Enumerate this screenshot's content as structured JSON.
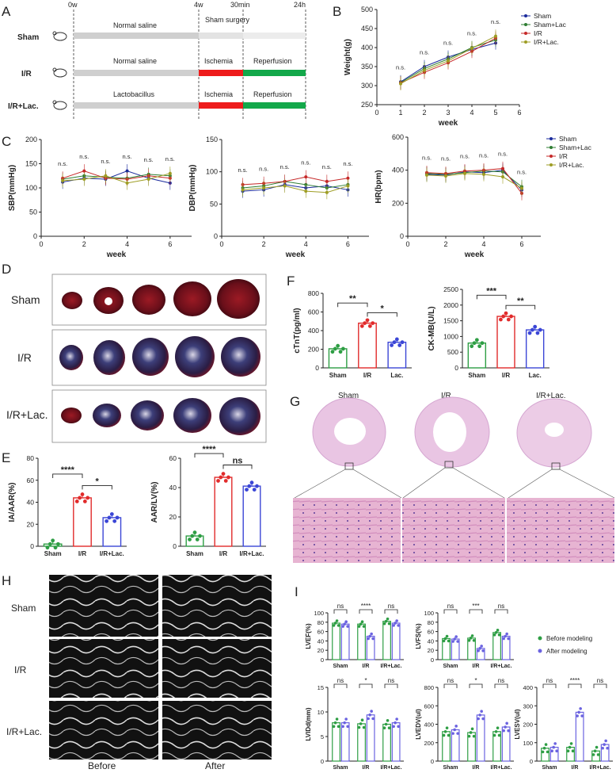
{
  "panels": {
    "A": "A",
    "B": "B",
    "C": "C",
    "D": "D",
    "E": "E",
    "F": "F",
    "G": "G",
    "H": "H",
    "I": "I"
  },
  "panel_a": {
    "time_marks": [
      "0w",
      "4w",
      "30min",
      "24h"
    ],
    "rows": [
      {
        "label": "Sham",
        "phase1": "Normal saline",
        "phase2": "Sham surgery",
        "phase3": ""
      },
      {
        "label": "I/R",
        "phase1": "Normal saline",
        "phase2": "Ischemia",
        "phase3": "Reperfusion"
      },
      {
        "label": "I/R+Lac.",
        "phase1": "Lactobacillus",
        "phase2": "Ischemia",
        "phase3": "Reperfusion"
      }
    ],
    "colors": {
      "gray": "#cfcfcf",
      "light": "#ececec",
      "red": "#ee1c1c",
      "green": "#13a84a"
    }
  },
  "series_colors": {
    "Sham": "#1a2a9c",
    "Sham+Lac": "#2e7d32",
    "I/R": "#c62828",
    "I/R+Lac.": "#9e9d24"
  },
  "chart_data": [
    {
      "id": "B",
      "type": "line",
      "xlabel": "week",
      "ylabel": "Weight(g)",
      "xlim": [
        0,
        6
      ],
      "ylim": [
        250,
        500
      ],
      "xticks": [
        0,
        1,
        2,
        3,
        4,
        5,
        6
      ],
      "yticks": [
        250,
        300,
        350,
        400,
        450,
        500
      ],
      "annotations": [
        "n.s.",
        "n.s.",
        "n.s.",
        "n.s.",
        "n.s."
      ],
      "x": [
        1,
        2,
        3,
        4,
        5
      ],
      "series": [
        {
          "name": "Sham",
          "values": [
            310,
            350,
            375,
            395,
            412
          ]
        },
        {
          "name": "Sham+Lac",
          "values": [
            308,
            345,
            370,
            400,
            420
          ]
        },
        {
          "name": "I/R",
          "values": [
            307,
            335,
            360,
            390,
            425
          ]
        },
        {
          "name": "I/R+Lac.",
          "values": [
            305,
            340,
            365,
            398,
            430
          ]
        }
      ]
    },
    {
      "id": "C1",
      "type": "line",
      "xlabel": "week",
      "ylabel": "SBP(mmHg)",
      "xlim": [
        0,
        7
      ],
      "ylim": [
        0,
        200
      ],
      "xticks": [
        0,
        2,
        4,
        6
      ],
      "yticks": [
        0,
        50,
        100,
        150,
        200
      ],
      "annotations": [
        "n.s.",
        "n.s.",
        "n.s.",
        "n.s.",
        "n.s.",
        "n.s."
      ],
      "x": [
        1,
        2,
        3,
        4,
        5,
        6
      ],
      "series": [
        {
          "name": "Sham",
          "values": [
            112,
            120,
            118,
            135,
            120,
            110
          ]
        },
        {
          "name": "Sham+Lac",
          "values": [
            118,
            125,
            122,
            120,
            128,
            125
          ]
        },
        {
          "name": "I/R",
          "values": [
            120,
            135,
            120,
            118,
            125,
            120
          ]
        },
        {
          "name": "I/R+Lac.",
          "values": [
            115,
            118,
            125,
            110,
            118,
            130
          ]
        }
      ]
    },
    {
      "id": "C2",
      "type": "line",
      "xlabel": "week",
      "ylabel": "DBP(mmHg)",
      "xlim": [
        0,
        7
      ],
      "ylim": [
        0,
        150
      ],
      "xticks": [
        0,
        2,
        4,
        6
      ],
      "yticks": [
        0,
        50,
        100,
        150
      ],
      "annotations": [
        "n.s.",
        "n.s.",
        "n.s.",
        "n.s.",
        "n.s.",
        "n.s."
      ],
      "x": [
        1,
        2,
        3,
        4,
        5,
        6
      ],
      "series": [
        {
          "name": "Sham",
          "values": [
            70,
            72,
            80,
            75,
            78,
            72
          ]
        },
        {
          "name": "Sham+Lac",
          "values": [
            75,
            78,
            85,
            80,
            75,
            80
          ]
        },
        {
          "name": "I/R",
          "values": [
            80,
            82,
            85,
            92,
            85,
            90
          ]
        },
        {
          "name": "I/R+Lac.",
          "values": [
            72,
            75,
            78,
            70,
            68,
            78
          ]
        }
      ]
    },
    {
      "id": "C3",
      "type": "line",
      "xlabel": "week",
      "ylabel": "HR(bpm)",
      "xlim": [
        0,
        7
      ],
      "ylim": [
        0,
        600
      ],
      "xticks": [
        0,
        2,
        4,
        6
      ],
      "yticks": [
        0,
        200,
        400,
        600
      ],
      "annotations": [
        "n.s.",
        "n.s.",
        "n.s.",
        "n.s.",
        "n.s.",
        "n.s."
      ],
      "legend": [
        "Sham",
        "Sham+Lac",
        "I/R",
        "I/R+Lac."
      ],
      "x": [
        1,
        2,
        3,
        4,
        5,
        6
      ],
      "series": [
        {
          "name": "Sham",
          "values": [
            375,
            370,
            390,
            385,
            400,
            280
          ]
        },
        {
          "name": "Sham+Lac",
          "values": [
            380,
            375,
            385,
            395,
            390,
            300
          ]
        },
        {
          "name": "I/R",
          "values": [
            385,
            380,
            395,
            400,
            410,
            260
          ]
        },
        {
          "name": "I/R+Lac.",
          "values": [
            370,
            365,
            380,
            375,
            360,
            290
          ]
        }
      ]
    },
    {
      "id": "E1",
      "type": "bar",
      "ylabel": "IA/AAR(%)",
      "ylim": [
        0,
        80
      ],
      "yticks": [
        0,
        20,
        40,
        60,
        80
      ],
      "categories": [
        "Sham",
        "I/R",
        "I/R+Lac."
      ],
      "values": [
        2,
        44,
        26
      ],
      "colors": [
        "#2e9e44",
        "#e12b2b",
        "#3b46d6"
      ],
      "sig": [
        {
          "label": "****",
          "from": 0,
          "to": 1
        },
        {
          "label": "*",
          "from": 1,
          "to": 2
        }
      ]
    },
    {
      "id": "E2",
      "type": "bar",
      "ylabel": "AAR/LV(%)",
      "ylim": [
        0,
        60
      ],
      "yticks": [
        0,
        20,
        40,
        60
      ],
      "categories": [
        "Sham",
        "I/R",
        "I/R+Lac."
      ],
      "values": [
        7,
        47,
        41
      ],
      "colors": [
        "#2e9e44",
        "#e12b2b",
        "#3b46d6"
      ],
      "sig": [
        {
          "label": "****",
          "from": 0,
          "to": 1
        },
        {
          "label": "ns",
          "from": 1,
          "to": 2
        }
      ]
    },
    {
      "id": "F1",
      "type": "bar",
      "ylabel": "cTnT(pg/ml)",
      "ylim": [
        0,
        800
      ],
      "yticks": [
        0,
        200,
        400,
        600,
        800
      ],
      "categories": [
        "Sham",
        "I/R",
        "Lac."
      ],
      "values": [
        205,
        480,
        275
      ],
      "colors": [
        "#2e9e44",
        "#e12b2b",
        "#3b46d6"
      ],
      "sig": [
        {
          "label": "**",
          "from": 0,
          "to": 1
        },
        {
          "label": "*",
          "from": 1,
          "to": 2
        }
      ]
    },
    {
      "id": "F2",
      "type": "bar",
      "ylabel": "CK-MB(U/L)",
      "ylim": [
        0,
        2500
      ],
      "yticks": [
        0,
        500,
        1000,
        1500,
        2000,
        2500
      ],
      "categories": [
        "Sham",
        "I/R",
        "Lac."
      ],
      "values": [
        790,
        1640,
        1210
      ],
      "colors": [
        "#2e9e44",
        "#e12b2b",
        "#3b46d6"
      ],
      "sig": [
        {
          "label": "***",
          "from": 0,
          "to": 1
        },
        {
          "label": "**",
          "from": 1,
          "to": 2
        }
      ]
    },
    {
      "id": "I1",
      "type": "bar",
      "ylabel": "LVEF(%)",
      "ylim": [
        0,
        100
      ],
      "yticks": [
        0,
        20,
        40,
        60,
        80,
        100
      ],
      "categories": [
        "Sham",
        "I/R",
        "I/R+Lac."
      ],
      "series": [
        {
          "name": "Before modeling",
          "values": [
            78,
            76,
            82
          ]
        },
        {
          "name": "After modeling",
          "values": [
            76,
            50,
            78
          ]
        }
      ],
      "sig": [
        "ns",
        "****",
        "ns"
      ]
    },
    {
      "id": "I2",
      "type": "bar",
      "ylabel": "LVFS(%)",
      "ylim": [
        0,
        100
      ],
      "yticks": [
        0,
        20,
        40,
        60,
        80,
        100
      ],
      "categories": [
        "Sham",
        "I/R",
        "I/R+Lac."
      ],
      "series": [
        {
          "name": "Before modeling",
          "values": [
            45,
            46,
            58
          ]
        },
        {
          "name": "After modeling",
          "values": [
            44,
            24,
            50
          ]
        }
      ],
      "sig": [
        "ns",
        "***",
        "ns"
      ]
    },
    {
      "id": "I3",
      "type": "bar",
      "ylabel": "LVIDd(mm)",
      "ylim": [
        0,
        15
      ],
      "yticks": [
        0,
        5,
        10,
        15
      ],
      "categories": [
        "Sham",
        "I/R",
        "I/R+Lac."
      ],
      "series": [
        {
          "name": "Before modeling",
          "values": [
            7.8,
            7.6,
            7.5
          ]
        },
        {
          "name": "After modeling",
          "values": [
            7.8,
            9.4,
            7.8
          ]
        }
      ],
      "sig": [
        "ns",
        "*",
        "ns"
      ]
    },
    {
      "id": "I4",
      "type": "bar",
      "ylabel": "LVEDV(ul)",
      "ylim": [
        0,
        800
      ],
      "yticks": [
        0,
        200,
        400,
        600,
        800
      ],
      "categories": [
        "Sham",
        "I/R",
        "I/R+Lac."
      ],
      "series": [
        {
          "name": "Before modeling",
          "values": [
            320,
            310,
            320
          ]
        },
        {
          "name": "After modeling",
          "values": [
            340,
            500,
            370
          ]
        }
      ],
      "sig": [
        "ns",
        "*",
        "ns"
      ]
    },
    {
      "id": "I5",
      "type": "bar",
      "ylabel": "LVESV(ul)",
      "ylim": [
        0,
        400
      ],
      "yticks": [
        0,
        100,
        200,
        300,
        400
      ],
      "categories": [
        "Sham",
        "I/R",
        "I/R+Lac."
      ],
      "series": [
        {
          "name": "Before modeling",
          "values": [
            70,
            75,
            55
          ]
        },
        {
          "name": "After modeling",
          "values": [
            75,
            265,
            90
          ]
        }
      ],
      "sig": [
        "ns",
        "****",
        "ns"
      ],
      "legend": [
        "Before modeling",
        "After modeling"
      ]
    }
  ],
  "panel_d": {
    "rows": [
      "Sham",
      "I/R",
      "I/R+Lac."
    ]
  },
  "panel_g": {
    "columns": [
      "Sham",
      "I/R",
      "I/R+Lac."
    ]
  },
  "panel_h": {
    "rows": [
      "Sham",
      "I/R",
      "I/R+Lac."
    ],
    "columns": [
      "Before",
      "After"
    ]
  }
}
